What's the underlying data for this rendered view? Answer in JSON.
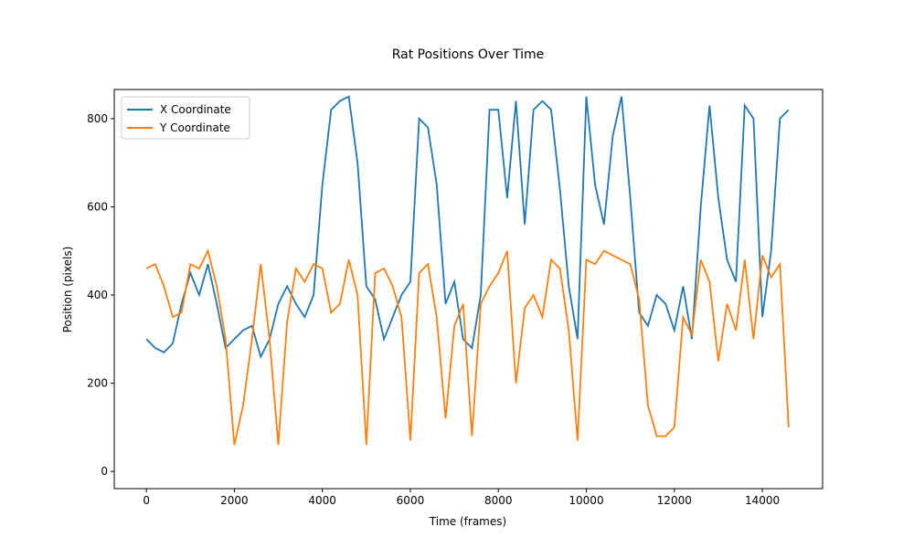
{
  "chart_data": {
    "type": "line",
    "title": "Rat Positions Over Time",
    "xlabel": "Time (frames)",
    "ylabel": "Position (pixels)",
    "x": [
      0,
      200,
      400,
      600,
      800,
      1000,
      1200,
      1400,
      1600,
      1800,
      2000,
      2200,
      2400,
      2600,
      2800,
      3000,
      3200,
      3400,
      3600,
      3800,
      4000,
      4200,
      4400,
      4600,
      4800,
      5000,
      5200,
      5400,
      5600,
      5800,
      6000,
      6200,
      6400,
      6600,
      6800,
      7000,
      7200,
      7400,
      7600,
      7800,
      8000,
      8200,
      8400,
      8600,
      8800,
      9000,
      9200,
      9400,
      9600,
      9800,
      10000,
      10200,
      10400,
      10600,
      10800,
      11000,
      11200,
      11400,
      11600,
      11800,
      12000,
      12200,
      12400,
      12600,
      12800,
      13000,
      13200,
      13400,
      13600,
      13800,
      14000,
      14200,
      14400,
      14600
    ],
    "series": [
      {
        "name": "X Coordinate",
        "color": "#1f77b4",
        "values": [
          300,
          280,
          270,
          290,
          380,
          450,
          400,
          470,
          380,
          280,
          300,
          320,
          330,
          260,
          300,
          380,
          420,
          380,
          350,
          400,
          650,
          820,
          840,
          850,
          700,
          420,
          390,
          300,
          350,
          400,
          430,
          800,
          780,
          650,
          380,
          430,
          300,
          280,
          400,
          820,
          820,
          620,
          840,
          560,
          820,
          840,
          820,
          640,
          420,
          300,
          850,
          650,
          560,
          760,
          850,
          620,
          360,
          330,
          400,
          380,
          320,
          420,
          300,
          600,
          830,
          620,
          480,
          430,
          830,
          800,
          350,
          500,
          800,
          820
        ]
      },
      {
        "name": "Y Coordinate",
        "color": "#ff7f0e",
        "values": [
          460,
          470,
          420,
          350,
          360,
          470,
          460,
          500,
          420,
          300,
          60,
          150,
          300,
          470,
          300,
          60,
          340,
          460,
          430,
          470,
          460,
          360,
          380,
          480,
          400,
          60,
          450,
          460,
          420,
          350,
          70,
          450,
          470,
          350,
          120,
          330,
          380,
          80,
          380,
          420,
          450,
          500,
          200,
          370,
          400,
          350,
          480,
          460,
          320,
          70,
          480,
          470,
          500,
          490,
          480,
          470,
          390,
          150,
          80,
          80,
          100,
          350,
          310,
          480,
          430,
          250,
          380,
          320,
          480,
          300,
          490,
          440,
          470,
          100
        ]
      }
    ],
    "xlim": [
      -730,
      15370
    ],
    "ylim": [
      -39,
      866
    ],
    "xticks": [
      0,
      2000,
      4000,
      6000,
      8000,
      10000,
      12000,
      14000
    ],
    "yticks": [
      0,
      200,
      400,
      600,
      800
    ],
    "legend": "upper left"
  }
}
